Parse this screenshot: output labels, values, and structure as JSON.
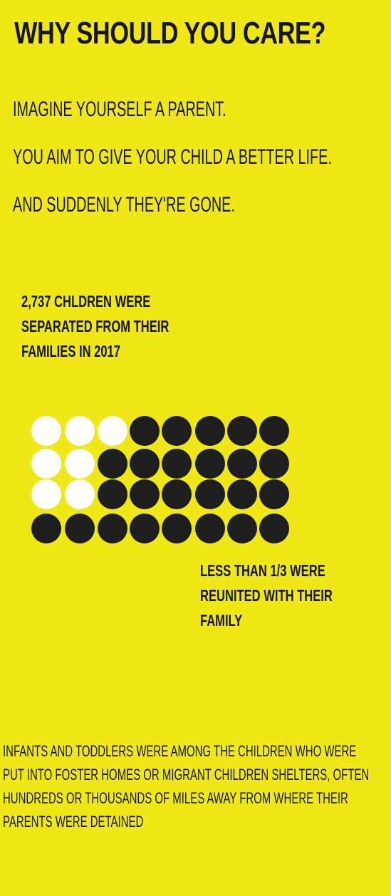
{
  "title": "WHY SHOULD YOU CARE?",
  "intro": [
    "IMAGINE YOURSELF A PARENT.",
    "YOU AIM TO GIVE YOUR CHILD A BETTER LIFE.",
    "AND SUDDENLY THEY'RE GONE."
  ],
  "stat_separated": [
    "2,737 CHLDREN WERE",
    "SEPARATED FROM THEIR",
    "FAMILIES IN 2017"
  ],
  "stat_reunited": [
    "LESS THAN 1/3 WERE",
    "REUNITED WITH THEIR",
    "FAMILY"
  ],
  "footer": [
    "INFANTS AND TODDLERS WERE AMONG THE CHILDREN WHO WERE",
    "PUT INTO FOSTER HOMES OR MIGRANT CHILDREN SHELTERS, OFTEN",
    "HUNDREDS OR THOUSANDS OF MILES AWAY FROM WHERE THEIR",
    "PARENTS WERE DETAINED"
  ],
  "dot_grid": {
    "rows": [
      [
        "white",
        "white",
        "white",
        "black",
        "black",
        "black",
        "black",
        "black"
      ],
      [
        "white",
        "white",
        "black",
        "black",
        "black",
        "black",
        "black",
        "black"
      ],
      [
        "white",
        "white",
        "black",
        "black",
        "black",
        "black",
        "black",
        "black"
      ],
      [
        "black",
        "black",
        "black",
        "black",
        "black",
        "black",
        "black",
        "black"
      ]
    ],
    "colors": {
      "white": "#ffffff",
      "black": "#1e1e1e"
    }
  },
  "colors": {
    "background": "#efe816",
    "text": "#161616"
  }
}
